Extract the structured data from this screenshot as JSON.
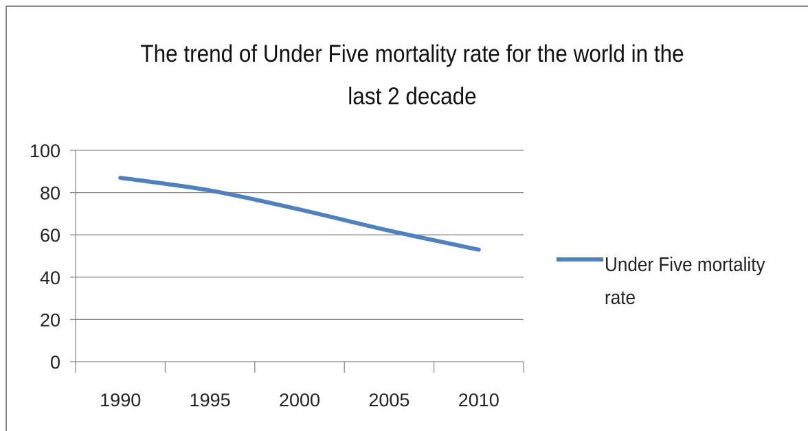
{
  "chart_data": {
    "type": "line",
    "title": "The trend of Under Five mortality rate for the world in the last 2 decade",
    "xlabel": "",
    "ylabel": "",
    "categories": [
      "1990",
      "1995",
      "2000",
      "2005",
      "2010"
    ],
    "series": [
      {
        "name": "Under Five mortality rate",
        "values": [
          87,
          81,
          72,
          62,
          53
        ],
        "color": "#4f81bd"
      }
    ],
    "ylim": [
      0,
      100
    ],
    "yticks": [
      0,
      20,
      40,
      60,
      80,
      100
    ],
    "grid": true,
    "legend_position": "right"
  }
}
